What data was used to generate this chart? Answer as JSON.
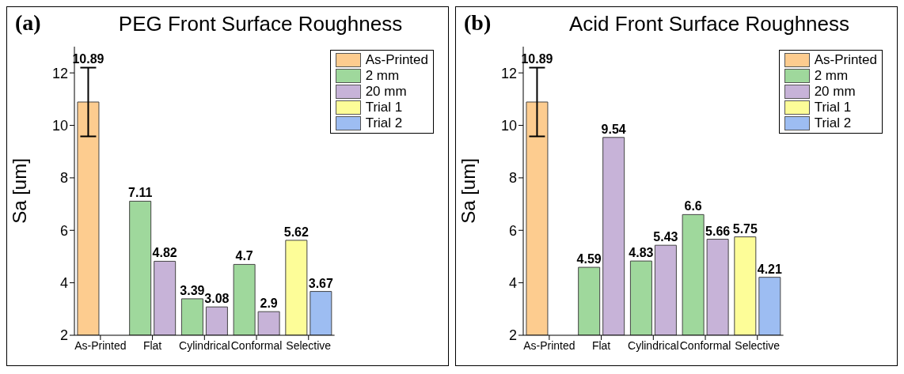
{
  "chart_data": [
    {
      "type": "bar",
      "title": "PEG Front Surface Roughness",
      "annotations": [
        "(a)"
      ],
      "ylabel": "Sa [um]",
      "categories": [
        "As-Printed",
        "Flat",
        "Cylindrical",
        "Conformal",
        "Selective"
      ],
      "series": [
        {
          "name": "As-Printed",
          "color": "#fdcc8f",
          "values": [
            10.89,
            null,
            null,
            null,
            null
          ],
          "errors": [
            1.31,
            null,
            null,
            null,
            null
          ]
        },
        {
          "name": "2 mm",
          "color": "#9fd89c",
          "values": [
            null,
            7.11,
            3.39,
            4.7,
            null
          ]
        },
        {
          "name": "20 mm",
          "color": "#c7b3d8",
          "values": [
            null,
            4.82,
            3.08,
            2.9,
            null
          ]
        },
        {
          "name": "Trial 1",
          "color": "#fdfd98",
          "values": [
            null,
            null,
            null,
            null,
            5.62
          ]
        },
        {
          "name": "Trial 2",
          "color": "#9dbdf2",
          "values": [
            null,
            null,
            null,
            null,
            3.67
          ]
        }
      ],
      "ylim": [
        2,
        13
      ],
      "yticks": [
        2,
        4,
        6,
        8,
        10,
        12
      ],
      "grid": false,
      "legend": "top right",
      "data_labels": true
    },
    {
      "type": "bar",
      "title": "Acid Front Surface Roughness",
      "annotations": [
        "(b)"
      ],
      "ylabel": "Sa [um]",
      "categories": [
        "As-Printed",
        "Flat",
        "Cylindrical",
        "Conformal",
        "Selective"
      ],
      "series": [
        {
          "name": "As-Printed",
          "color": "#fdcc8f",
          "values": [
            10.89,
            null,
            null,
            null,
            null
          ],
          "errors": [
            1.31,
            null,
            null,
            null,
            null
          ]
        },
        {
          "name": "2 mm",
          "color": "#9fd89c",
          "values": [
            null,
            4.59,
            4.83,
            6.6,
            null
          ]
        },
        {
          "name": "20 mm",
          "color": "#c7b3d8",
          "values": [
            null,
            9.54,
            5.43,
            5.66,
            null
          ]
        },
        {
          "name": "Trial 1",
          "color": "#fdfd98",
          "values": [
            null,
            null,
            null,
            null,
            5.75
          ]
        },
        {
          "name": "Trial 2",
          "color": "#9dbdf2",
          "values": [
            null,
            null,
            null,
            null,
            4.21
          ]
        }
      ],
      "ylim": [
        2,
        13
      ],
      "yticks": [
        2,
        4,
        6,
        8,
        10,
        12
      ],
      "grid": false,
      "legend": "top right",
      "data_labels": true
    }
  ]
}
